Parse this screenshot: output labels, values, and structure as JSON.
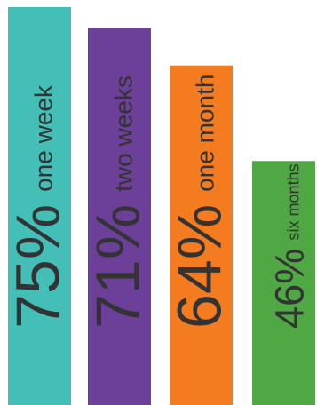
{
  "chart_data": {
    "type": "bar",
    "title": "",
    "xlabel": "",
    "ylabel": "",
    "ylim": [
      0,
      100
    ],
    "categories": [
      "one week",
      "two weeks",
      "one month",
      "six months"
    ],
    "values": [
      75,
      71,
      64,
      46
    ],
    "value_labels": [
      "75%",
      "71%",
      "64%",
      "46%"
    ],
    "colors": [
      "#43bfb7",
      "#6c3f99",
      "#f57b20",
      "#4fa844"
    ],
    "grid": false,
    "legend": "none"
  }
}
